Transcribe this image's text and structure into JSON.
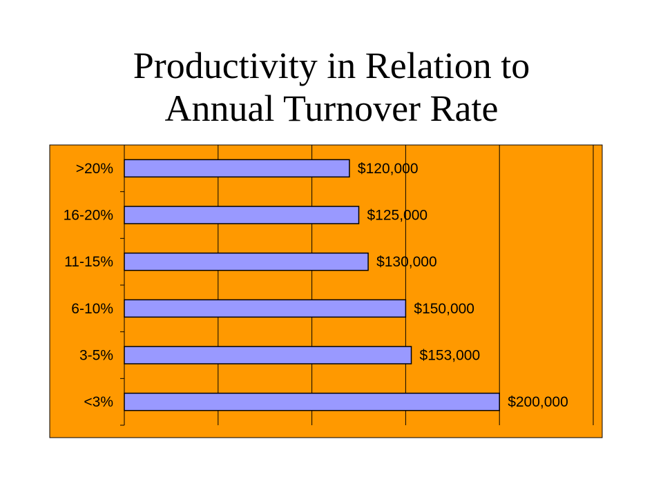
{
  "title": {
    "line1": "Productivity in Relation to",
    "line2": "Annual Turnover Rate"
  },
  "colors": {
    "background": "#ff9900",
    "bar_fill": "#9999ff",
    "bar_stroke": "#000000",
    "gridline": "#000000"
  },
  "chart_data": {
    "type": "bar",
    "orientation": "horizontal",
    "categories": [
      ">20%",
      "16-20%",
      "11-15%",
      "6-10%",
      "3-5%",
      "<3%"
    ],
    "values": [
      120000,
      125000,
      130000,
      150000,
      153000,
      200000
    ],
    "data_labels": [
      "$120,000",
      "$125,000",
      "$130,000",
      "$150,000",
      "$153,000",
      "$200,000"
    ],
    "title": "Productivity in Relation to Annual Turnover Rate",
    "xlabel": "",
    "ylabel": "",
    "xlim": [
      0,
      250000
    ],
    "grid": true,
    "legend": "none"
  }
}
